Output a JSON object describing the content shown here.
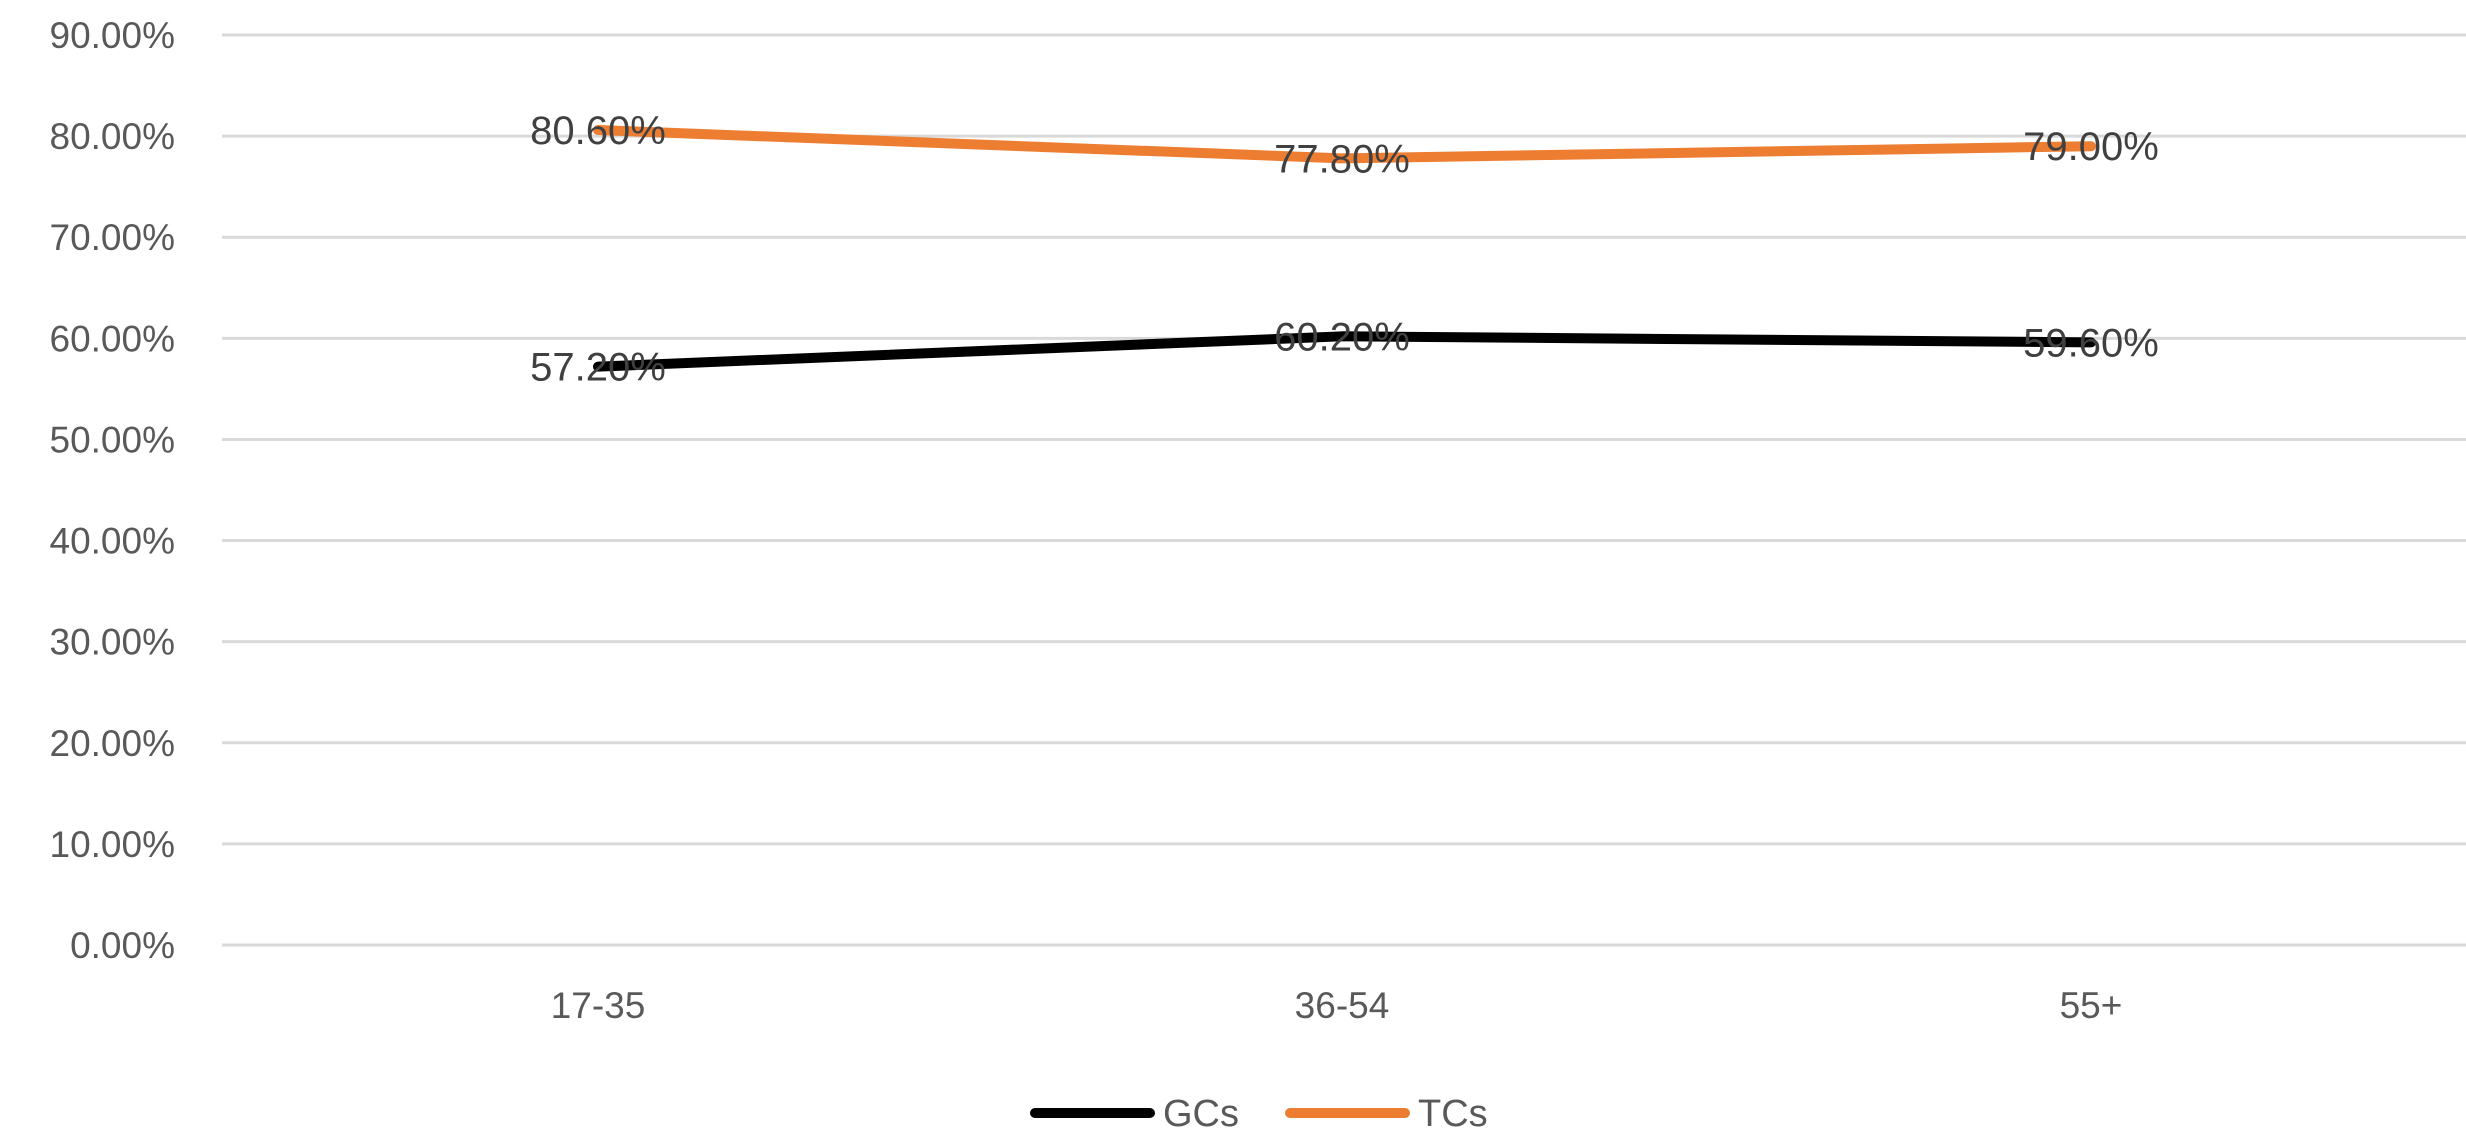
{
  "chart_data": {
    "type": "line",
    "categories": [
      "17-35",
      "36-54",
      "55+"
    ],
    "series": [
      {
        "name": "GCs",
        "values": [
          57.2,
          60.2,
          59.6
        ],
        "labels": [
          "57.20%",
          "60.20%",
          "59.60%"
        ],
        "color": "#000000"
      },
      {
        "name": "TCs",
        "values": [
          80.6,
          77.8,
          79.0
        ],
        "labels": [
          "80.60%",
          "77.80%",
          "79.00%"
        ],
        "color": "#ed7d31"
      }
    ],
    "ylim": [
      0,
      90
    ],
    "y_ticks": [
      {
        "value": 0,
        "label": "0.00%"
      },
      {
        "value": 10,
        "label": "10.00%"
      },
      {
        "value": 20,
        "label": "20.00%"
      },
      {
        "value": 30,
        "label": "30.00%"
      },
      {
        "value": 40,
        "label": "40.00%"
      },
      {
        "value": 50,
        "label": "50.00%"
      },
      {
        "value": 60,
        "label": "60.00%"
      },
      {
        "value": 70,
        "label": "70.00%"
      },
      {
        "value": 80,
        "label": "80.00%"
      },
      {
        "value": 90,
        "label": "90.00%"
      }
    ],
    "title": "",
    "xlabel": "",
    "ylabel": "",
    "grid": true,
    "legend_position": "bottom-center",
    "gridline_color": "#d9d9d9"
  }
}
